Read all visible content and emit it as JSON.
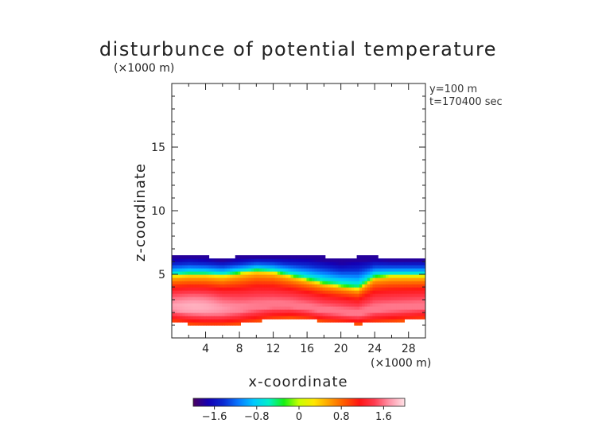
{
  "chart_data": {
    "type": "heatmap",
    "title": "disturbunce of potential temperature",
    "xlabel": "x-coordinate",
    "ylabel": "z-coordinate",
    "x_unit": "(×1000 m)",
    "z_unit": "(×1000 m)",
    "annotations": [
      "y=100 m",
      "t=170400 sec"
    ],
    "xlim": [
      0,
      30
    ],
    "ylim": [
      0,
      20
    ],
    "x_ticks": [
      4,
      8,
      12,
      16,
      20,
      24,
      28
    ],
    "y_ticks": [
      5,
      10,
      15
    ],
    "colorbar": {
      "range": [
        -2,
        2
      ],
      "ticks": [
        "−1.6",
        "−0.8",
        "0",
        "0.8",
        "1.6"
      ],
      "tick_values": [
        -1.6,
        -0.8,
        0,
        0.8,
        1.6
      ],
      "colors": [
        "#4b0060",
        "#1400b4",
        "#0a2ad2",
        "#0878ff",
        "#00c8ff",
        "#00f0c8",
        "#14f014",
        "#c8ff00",
        "#ffe600",
        "#ffa000",
        "#ff5a00",
        "#ff1414",
        "#ff3c50",
        "#ff96aa",
        "#ffe1e6"
      ]
    },
    "field_summary": {
      "x_samples": [
        0,
        2,
        4,
        6,
        8,
        10,
        12,
        14,
        16,
        18,
        20,
        22,
        24,
        26,
        28,
        30
      ],
      "top_of_disturbed_layer_km": [
        6.4,
        6.5,
        6.4,
        6.3,
        6.4,
        6.5,
        6.5,
        6.5,
        6.5,
        6.4,
        6.2,
        6.4,
        6.4,
        6.3,
        6.3,
        6.3
      ],
      "cold_warm_interface_km": [
        4.9,
        5.0,
        5.0,
        4.9,
        5.1,
        5.3,
        5.2,
        4.9,
        4.6,
        4.3,
        4.1,
        3.9,
        4.8,
        4.9,
        4.9,
        4.9
      ],
      "bottom_of_disturbed_layer_km": [
        1.3,
        1.1,
        1.0,
        1.0,
        1.1,
        1.3,
        1.5,
        1.6,
        1.5,
        1.3,
        1.2,
        1.1,
        1.2,
        1.3,
        1.4,
        1.5
      ],
      "min_value_near_top": -1.8,
      "max_value_warm_core": 1.9
    }
  }
}
